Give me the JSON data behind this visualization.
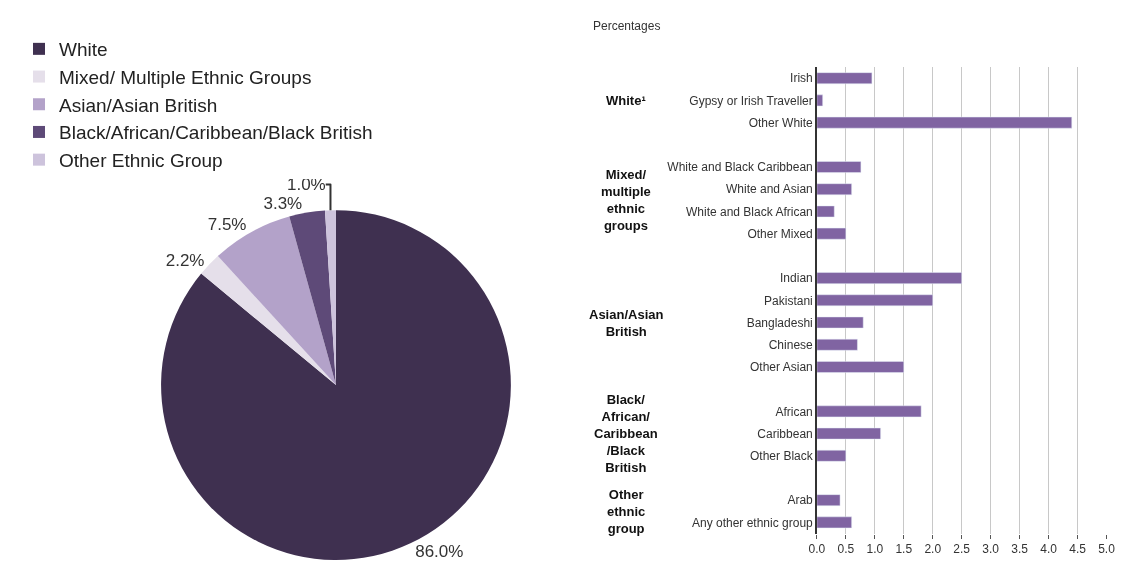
{
  "chart_data": [
    {
      "type": "pie",
      "categories": [
        "White",
        "Mixed/ Multiple Ethnic Groups",
        "Asian/Asian British",
        "Black/African/Caribbean/Black British",
        "Other Ethnic Group"
      ],
      "values": [
        86.0,
        2.2,
        7.5,
        3.3,
        1.0
      ],
      "value_labels": [
        "86.0%",
        "2.2%",
        "7.5%",
        "3.3%",
        "1.0%"
      ],
      "colors": [
        "#3f3050",
        "#e5dfea",
        "#b3a2c9",
        "#5e4a78",
        "#cdc3dc"
      ],
      "legend": "top left"
    },
    {
      "type": "bar",
      "orientation": "horizontal",
      "subtitle": "Percentages",
      "categories": [
        "Irish",
        "Gypsy or Irish Traveller",
        "Other White",
        null,
        "White and Black Caribbean",
        "White and Asian",
        "White and Black African",
        "Other Mixed",
        null,
        "Indian",
        "Pakistani",
        "Bangladeshi",
        "Chinese",
        "Other Asian",
        null,
        "African",
        "Caribbean",
        "Other Black",
        null,
        "Arab",
        "Any other ethnic group"
      ],
      "values": [
        0.95,
        0.1,
        4.4,
        null,
        0.76,
        0.6,
        0.3,
        0.5,
        null,
        2.5,
        2.0,
        0.8,
        0.7,
        1.5,
        null,
        1.8,
        1.1,
        0.5,
        null,
        0.4,
        0.6
      ],
      "color": "#8064a2",
      "annotations": [
        "White¹",
        "Mixed/\nmultiple\nethnic\ngroups",
        "Asian/Asian\nBritish",
        "Black/\nAfrican/\nCaribbean\n/Black\nBritish",
        "Other\nethnic\ngroup"
      ],
      "xlim": [
        0,
        5
      ],
      "xticks": [
        {
          "value": 0,
          "label": "0.0"
        },
        {
          "value": 0.5,
          "label": "0.5"
        },
        {
          "value": 1,
          "label": "1.0"
        },
        {
          "value": 1.5,
          "label": "1.5"
        },
        {
          "value": 2,
          "label": "2.0"
        },
        {
          "value": 2.5,
          "label": "2.5"
        },
        {
          "value": 3,
          "label": "3.0"
        },
        {
          "value": 3.5,
          "label": "3.5"
        },
        {
          "value": 4,
          "label": "4.0"
        },
        {
          "value": 4.5,
          "label": "4.5"
        },
        {
          "value": 5,
          "label": "5.0"
        }
      ],
      "grid": "x"
    }
  ]
}
